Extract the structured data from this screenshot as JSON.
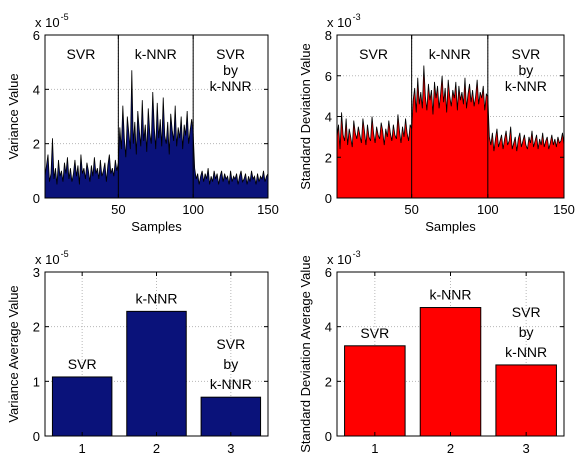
{
  "chart_data": [
    {
      "type": "area",
      "xlabel": "Samples",
      "ylabel": "Variance Value",
      "exponent_label": "x 10",
      "exponent_power": "-5",
      "xlim": [
        1,
        150
      ],
      "ylim": [
        0,
        6
      ],
      "xticks": [
        50,
        100,
        150
      ],
      "yticks": [
        0,
        2,
        4,
        6
      ],
      "grid": true,
      "fill_color": "#0a127a",
      "region_dividers": [
        50,
        100
      ],
      "regions": [
        {
          "lines": [
            "SVR"
          ],
          "x": 25
        },
        {
          "lines": [
            "k-NNR"
          ],
          "x": 75
        },
        {
          "lines": [
            "SVR",
            "by",
            "k-NNR"
          ],
          "x": 125
        }
      ],
      "y": [
        0.8,
        1.2,
        1.6,
        0.6,
        0.9,
        2.2,
        0.7,
        1.1,
        0.5,
        1.4,
        0.8,
        1.0,
        0.6,
        1.3,
        0.9,
        1.5,
        0.7,
        1.1,
        0.6,
        0.9,
        1.4,
        0.8,
        1.2,
        0.5,
        1.6,
        0.9,
        1.1,
        0.7,
        1.3,
        1.0,
        0.6,
        1.2,
        0.8,
        1.5,
        0.9,
        1.1,
        0.7,
        1.4,
        0.8,
        1.0,
        1.3,
        0.6,
        1.2,
        1.6,
        0.9,
        1.1,
        0.8,
        1.4,
        1.0,
        1.3,
        2.6,
        1.8,
        3.4,
        2.2,
        1.5,
        3.0,
        2.4,
        1.8,
        4.7,
        2.0,
        2.8,
        1.6,
        3.2,
        2.5,
        1.9,
        3.6,
        2.1,
        2.7,
        1.7,
        3.3,
        2.4,
        2.0,
        3.9,
        2.6,
        1.8,
        3.5,
        2.2,
        2.9,
        1.9,
        3.7,
        2.3,
        2.0,
        2.8,
        1.6,
        3.1,
        2.5,
        2.1,
        3.4,
        1.9,
        2.6,
        2.2,
        3.0,
        1.8,
        2.7,
        2.3,
        3.2,
        2.0,
        2.5,
        2.9,
        2.4,
        1.1,
        0.7,
        0.9,
        0.5,
        0.8,
        1.0,
        0.6,
        0.9,
        0.7,
        1.1,
        0.5,
        0.8,
        0.6,
        1.0,
        0.7,
        0.9,
        0.5,
        0.8,
        1.0,
        0.6,
        0.9,
        0.7,
        0.8,
        0.5,
        1.0,
        0.6,
        0.8,
        0.7,
        0.9,
        0.5,
        0.8,
        1.0,
        0.6,
        0.7,
        0.9,
        0.5,
        0.8,
        0.6,
        1.0,
        0.7,
        0.8,
        0.5,
        0.9,
        0.6,
        0.8,
        0.7,
        1.0,
        0.6,
        0.8,
        0.9
      ]
    },
    {
      "type": "area",
      "xlabel": "Samples",
      "ylabel": "Standard Deviation Value",
      "exponent_label": "x 10",
      "exponent_power": "-3",
      "xlim": [
        1,
        150
      ],
      "ylim": [
        0,
        8
      ],
      "xticks": [
        50,
        100,
        150
      ],
      "yticks": [
        0,
        2,
        4,
        6,
        8
      ],
      "grid": true,
      "fill_color": "#ff0000",
      "region_dividers": [
        50,
        100
      ],
      "regions": [
        {
          "lines": [
            "SVR"
          ],
          "x": 25
        },
        {
          "lines": [
            "k-NNR"
          ],
          "x": 75
        },
        {
          "lines": [
            "SVR",
            "by",
            "k-NNR"
          ],
          "x": 125
        }
      ],
      "y": [
        3.0,
        3.6,
        2.4,
        4.2,
        3.1,
        2.8,
        3.9,
        2.6,
        3.4,
        3.0,
        2.5,
        3.8,
        3.2,
        2.9,
        3.5,
        3.1,
        2.7,
        3.9,
        3.3,
        2.6,
        3.6,
        3.0,
        2.8,
        4.0,
        3.2,
        2.7,
        3.5,
        3.1,
        2.9,
        3.7,
        3.3,
        2.6,
        3.4,
        3.0,
        3.8,
        3.2,
        2.8,
        3.6,
        3.1,
        2.9,
        4.1,
        3.3,
        2.7,
        3.5,
        3.0,
        3.9,
        3.2,
        2.8,
        3.6,
        3.4,
        4.8,
        5.4,
        4.2,
        5.9,
        4.6,
        5.2,
        4.4,
        6.5,
        5.0,
        4.3,
        5.6,
        4.8,
        5.3,
        4.1,
        5.7,
        4.9,
        5.5,
        4.4,
        5.1,
        6.0,
        4.7,
        5.4,
        4.2,
        5.8,
        5.0,
        4.5,
        5.3,
        4.9,
        5.7,
        4.3,
        5.5,
        4.8,
        5.2,
        4.6,
        5.9,
        4.4,
        5.1,
        5.6,
        4.7,
        5.3,
        4.5,
        5.0,
        5.8,
        4.6,
        5.2,
        4.9,
        5.5,
        4.3,
        5.1,
        5.0,
        3.0,
        2.6,
        3.2,
        2.3,
        2.9,
        3.4,
        2.5,
        2.8,
        3.1,
        2.4,
        2.9,
        3.3,
        2.6,
        2.8,
        3.5,
        2.4,
        2.7,
        3.0,
        2.3,
        2.9,
        3.2,
        2.5,
        2.8,
        3.1,
        2.6,
        2.4,
        3.0,
        2.7,
        3.3,
        2.5,
        2.8,
        3.1,
        2.4,
        2.9,
        2.6,
        3.2,
        2.5,
        2.8,
        3.0,
        2.4,
        2.7,
        3.1,
        2.6,
        2.9,
        2.5,
        3.0,
        2.7,
        2.8,
        3.2,
        2.6
      ]
    },
    {
      "type": "bar",
      "ylabel": "Variance Average Value",
      "exponent_label": "x 10",
      "exponent_power": "-5",
      "categories": [
        "1",
        "2",
        "3"
      ],
      "values": [
        1.08,
        2.28,
        0.71
      ],
      "bar_labels": [
        [
          "SVR"
        ],
        [
          "k-NNR"
        ],
        [
          "SVR",
          "by",
          "k-NNR"
        ]
      ],
      "ylim": [
        0,
        3
      ],
      "yticks": [
        0,
        1,
        2,
        3
      ],
      "grid": true,
      "fill_color": "#0a127a"
    },
    {
      "type": "bar",
      "ylabel": "Standard Deviation Average Value",
      "exponent_label": "x 10",
      "exponent_power": "-3",
      "categories": [
        "1",
        "2",
        "3"
      ],
      "values": [
        3.3,
        4.7,
        2.6
      ],
      "bar_labels": [
        [
          "SVR"
        ],
        [
          "k-NNR"
        ],
        [
          "SVR",
          "by",
          "k-NNR"
        ]
      ],
      "ylim": [
        0,
        6
      ],
      "yticks": [
        0,
        2,
        4,
        6
      ],
      "grid": true,
      "fill_color": "#ff0000"
    }
  ]
}
